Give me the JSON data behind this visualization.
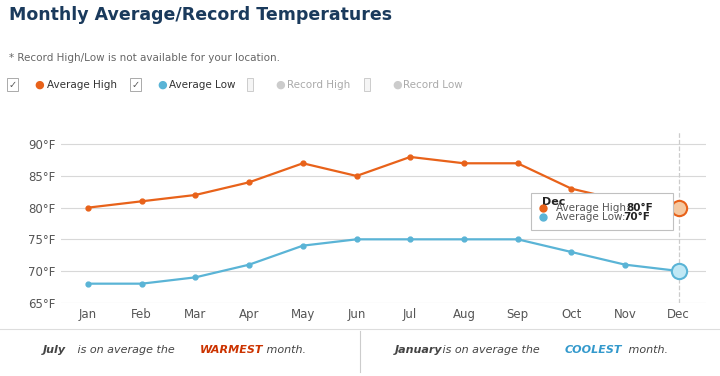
{
  "months": [
    "Jan",
    "Feb",
    "Mar",
    "Apr",
    "May",
    "Jun",
    "Jul",
    "Aug",
    "Sep",
    "Oct",
    "Nov",
    "Dec"
  ],
  "avg_high": [
    80,
    81,
    82,
    84,
    87,
    85,
    88,
    87,
    87,
    83,
    81,
    80
  ],
  "avg_low": [
    68,
    68,
    69,
    71,
    74,
    75,
    75,
    75,
    75,
    73,
    71,
    70
  ],
  "avg_high_color": "#e8621a",
  "avg_low_color": "#5ab4d6",
  "title": "Monthly Average/Record Temperatures",
  "subtitle": "* Record High/Low is not available for your location.",
  "ylim": [
    65,
    92
  ],
  "yticks": [
    90,
    85,
    80,
    75,
    70,
    65
  ],
  "ytick_labels": [
    "90°F",
    "85°F",
    "80°F",
    "75°F",
    "70°F",
    "65°F"
  ],
  "bg_color": "#ffffff",
  "plot_bg_color": "#ffffff",
  "footer_warmest_word": "July",
  "footer_warmest_mid": "WARMEST",
  "footer_coolest_word": "January",
  "footer_coolest_mid": "COOLEST",
  "footer_text1": " is on average the ",
  "footer_text2": " month.",
  "tooltip_month": "Dec",
  "tooltip_high": "80°F",
  "tooltip_low": "70°F",
  "title_color": "#1a3a5c",
  "subtitle_color": "#666666",
  "warmest_color": "#cc3300",
  "coolest_color": "#3399cc",
  "footer_text_color": "#444444"
}
